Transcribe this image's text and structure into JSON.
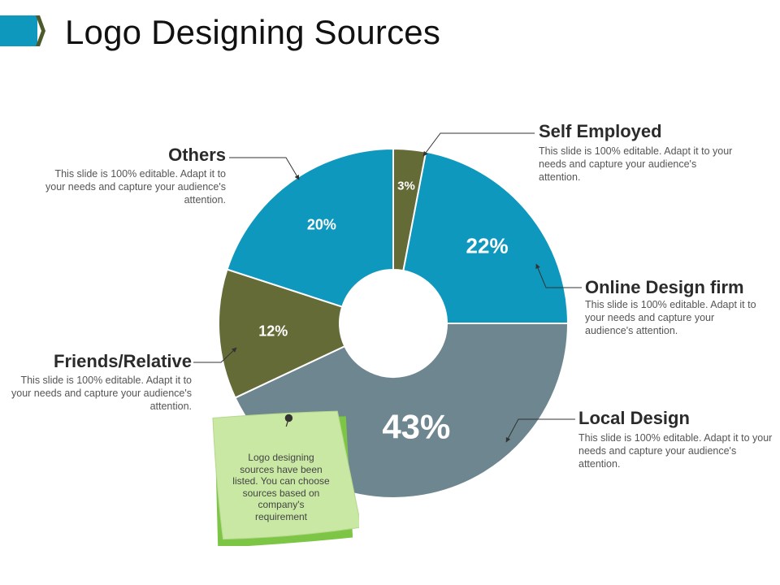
{
  "title": "Logo Designing Sources",
  "colors": {
    "accent": "#0f98bd",
    "olive": "#656b37",
    "blue": "#0f98bd",
    "gray": "#6d8690",
    "note": "#c9e8a4",
    "note_back": "#7dc545"
  },
  "chart_data": {
    "type": "pie",
    "subtype": "donut",
    "slices": [
      {
        "name": "Self Employed",
        "value": 3,
        "label": "3%",
        "color": "#656b37"
      },
      {
        "name": "Online Design firm",
        "value": 22,
        "label": "22%",
        "color": "#0f98bd"
      },
      {
        "name": "Local Design",
        "value": 43,
        "label": "43%",
        "color": "#6d8690"
      },
      {
        "name": "Friends/Relative",
        "value": 12,
        "label": "12%",
        "color": "#656b37"
      },
      {
        "name": "Others",
        "value": 20,
        "label": "20%",
        "color": "#0f98bd"
      }
    ]
  },
  "callouts": {
    "self_employed": {
      "title": "Self Employed",
      "desc": "This slide is 100% editable. Adapt it to your needs and capture your audience's attention."
    },
    "online": {
      "title": "Online Design firm",
      "desc": "This slide is 100% editable. Adapt it to your needs and capture your audience's attention."
    },
    "local": {
      "title": "Local Design",
      "desc": "This slide is 100% editable. Adapt it to your needs and capture your audience's attention."
    },
    "friends": {
      "title": "Friends/Relative",
      "desc": "This slide is 100% editable. Adapt it to your needs and capture your audience's attention."
    },
    "others": {
      "title": "Others",
      "desc": "This slide is 100% editable. Adapt it to your needs and capture your audience's attention."
    }
  },
  "note": {
    "text": "Logo designing sources have been listed. You can choose sources based on company's requirement"
  }
}
